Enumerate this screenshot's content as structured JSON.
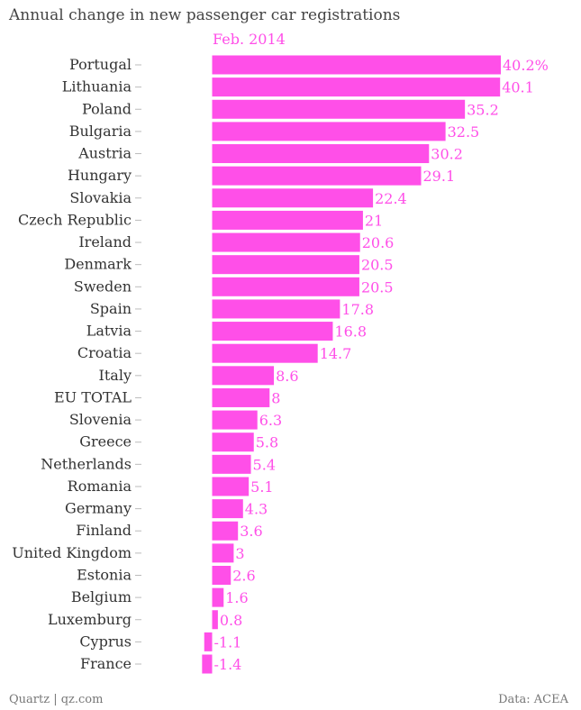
{
  "title": "Annual change in new passenger car registrations",
  "series_label": "Feb. 2014",
  "footer": {
    "source_left": "Quartz | qz.com",
    "source_right": "Data: ACEA"
  },
  "colors": {
    "bar": "#ff4fe8",
    "label": "#ff4fe8",
    "text": "#333333"
  },
  "chart_data": {
    "type": "bar",
    "orientation": "horizontal",
    "categories": [
      "Portugal",
      "Lithuania",
      "Poland",
      "Bulgaria",
      "Austria",
      "Hungary",
      "Slovakia",
      "Czech Republic",
      "Ireland",
      "Denmark",
      "Sweden",
      "Spain",
      "Latvia",
      "Croatia",
      "Italy",
      "EU TOTAL",
      "Slovenia",
      "Greece",
      "Netherlands",
      "Romania",
      "Germany",
      "Finland",
      "United Kingdom",
      "Estonia",
      "Belgium",
      "Luxemburg",
      "Cyprus",
      "France"
    ],
    "values": [
      40.2,
      40.1,
      35.2,
      32.5,
      30.2,
      29.1,
      22.4,
      21,
      20.6,
      20.5,
      20.5,
      17.8,
      16.8,
      14.7,
      8.6,
      8,
      6.3,
      5.8,
      5.4,
      5.1,
      4.3,
      3.6,
      3,
      2.6,
      1.6,
      0.8,
      -1.1,
      -1.4
    ],
    "value_labels": [
      "40.2%",
      "40.1",
      "35.2",
      "32.5",
      "30.2",
      "29.1",
      "22.4",
      "21",
      "20.6",
      "20.5",
      "20.5",
      "17.8",
      "16.8",
      "14.7",
      "8.6",
      "8",
      "6.3",
      "5.8",
      "5.4",
      "5.1",
      "4.3",
      "3.6",
      "3",
      "2.6",
      "1.6",
      "0.8",
      "-1.1",
      "-1.4"
    ],
    "xlim": [
      -1.4,
      40.2
    ],
    "grid": false,
    "legend": "none"
  }
}
